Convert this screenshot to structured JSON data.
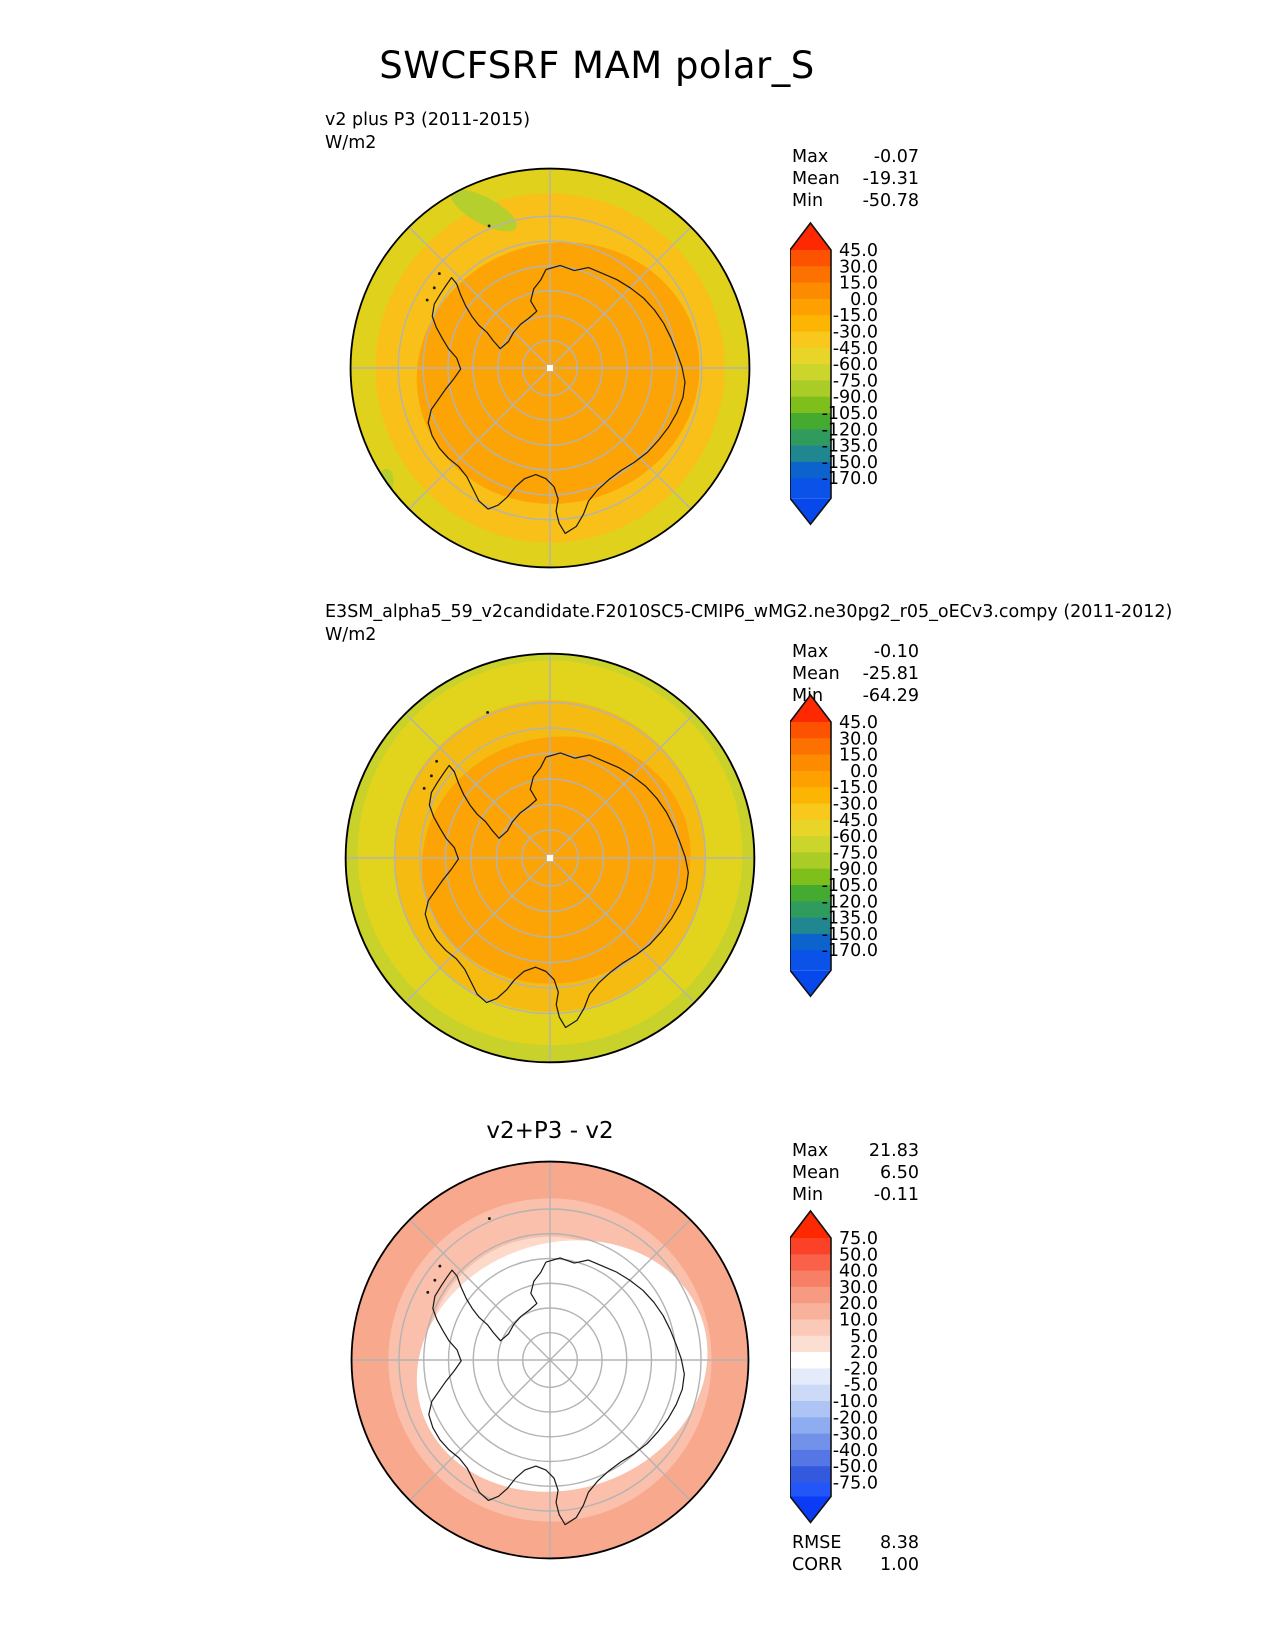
{
  "title": "SWCFSRF MAM polar_S",
  "panels": [
    {
      "label": "v2 plus P3 (2011-2015)",
      "units": "W/m2",
      "stats": [
        {
          "name": "Max",
          "value": "-0.07"
        },
        {
          "name": "Mean",
          "value": "-19.31"
        },
        {
          "name": "Min",
          "value": "-50.78"
        }
      ],
      "colorbar": {
        "ticks": [
          "45.0",
          "30.0",
          "15.0",
          "0.0",
          "-15.0",
          "-30.0",
          "-45.0",
          "-60.0",
          "-75.0",
          "-90.0",
          "-105.0",
          "-120.0",
          "-135.0",
          "-150.0",
          "-170.0"
        ],
        "band_colors": [
          "#fd5200",
          "#fd7100",
          "#fd8b00",
          "#fda000",
          "#fdb504",
          "#f9c81c",
          "#e9d428",
          "#ccd52b",
          "#a9cc26",
          "#7fbf1c",
          "#45aa30",
          "#2f9c5e",
          "#20868f",
          "#0c63cd"
        ],
        "arrow_top": "#fe2900",
        "extra_color": "#0a52e8",
        "arrow_bottom": "#0748ec"
      },
      "map": {
        "zone_colors": [
          "#e0d11d",
          "#f8c018",
          "#fca306",
          "#b5cf2e",
          "#b5cf2e"
        ],
        "graticule_color": "#b3b3b3",
        "coast_color": "#1a1a1a",
        "pole_dot": "#ffffff"
      }
    },
    {
      "label": "E3SM_alpha5_59_v2candidate.F2010SC5-CMIP6_wMG2.ne30pg2_r05_oECv3.compy (2011-2012)",
      "units": "W/m2",
      "stats": [
        {
          "name": "Max",
          "value": "-0.10"
        },
        {
          "name": "Mean",
          "value": "-25.81"
        },
        {
          "name": "Min",
          "value": "-64.29"
        }
      ],
      "colorbar": {
        "ticks": [
          "45.0",
          "30.0",
          "15.0",
          "0.0",
          "-15.0",
          "-30.0",
          "-45.0",
          "-60.0",
          "-75.0",
          "-90.0",
          "-105.0",
          "-120.0",
          "-135.0",
          "-150.0",
          "-170.0"
        ],
        "band_colors": [
          "#fd5200",
          "#fd7100",
          "#fd8b00",
          "#fda000",
          "#fdb504",
          "#f9c81c",
          "#e9d428",
          "#ccd52b",
          "#a9cc26",
          "#7fbf1c",
          "#45aa30",
          "#2f9c5e",
          "#20868f",
          "#0c63cd"
        ],
        "arrow_top": "#fe2900",
        "extra_color": "#0a52e8",
        "arrow_bottom": "#0748ec"
      },
      "map": {
        "zone_colors": [
          "#c9d22b",
          "#e2d41d",
          "#f6bb10",
          "#fca306"
        ],
        "graticule_color": "#b3b3b3",
        "coast_color": "#1a1a1a",
        "pole_dot": "#ffffff"
      }
    },
    {
      "label": "v2+P3 - v2",
      "stats": [
        {
          "name": "Max",
          "value": "21.83"
        },
        {
          "name": "Mean",
          "value": "6.50"
        },
        {
          "name": "Min",
          "value": "-0.11"
        }
      ],
      "colorbar": {
        "ticks": [
          "75.0",
          "50.0",
          "40.0",
          "30.0",
          "20.0",
          "10.0",
          "5.0",
          "2.0",
          "-2.0",
          "-5.0",
          "-10.0",
          "-20.0",
          "-30.0",
          "-40.0",
          "-50.0",
          "-75.0"
        ],
        "band_colors": [
          "#fb4229",
          "#f96248",
          "#f77f65",
          "#f69a82",
          "#f8b29c",
          "#fac9b8",
          "#fcded2",
          "#ffffff",
          "#e4ecfb",
          "#ccdaf8",
          "#adc4f4",
          "#8eacf0",
          "#7292ea",
          "#5577e6",
          "#3359de"
        ],
        "arrow_top": "#fe2900",
        "extra_color": "#2256f8",
        "arrow_bottom": "#0b3bf4"
      },
      "metrics": [
        {
          "name": "RMSE",
          "value": "8.38"
        },
        {
          "name": "CORR",
          "value": "1.00"
        }
      ],
      "map": {
        "zone_colors": [
          "#f8a88c",
          "#fac0ab",
          "#fcd9c9",
          "#fdece4",
          "#ffffff"
        ],
        "graticule_color": "#b3b3b3",
        "coast_color": "#1a1a1a"
      }
    }
  ],
  "chart_data": [
    {
      "type": "heatmap",
      "title": "v2 plus P3 (2011-2015)",
      "variable": "SWCFSRF",
      "season": "MAM",
      "region": "polar_S",
      "units": "W/m2",
      "projection": "south polar stereographic",
      "stats": {
        "max": -0.07,
        "mean": -19.31,
        "min": -50.78
      },
      "colorbar_ticks": [
        45.0,
        30.0,
        15.0,
        0.0,
        -15.0,
        -30.0,
        -45.0,
        -60.0,
        -75.0,
        -90.0,
        -105.0,
        -120.0,
        -135.0,
        -150.0,
        -170.0
      ],
      "colormap": "orange-yellow-green-blue rainbow, arrows both ends",
      "field_summary": "values near -15 to -30 W/m2 over Antarctic interior (orange), decreasing to -30 to -60 (yellow/yellow-green) toward 50-60S map edge"
    },
    {
      "type": "heatmap",
      "title": "E3SM_alpha5_59_v2candidate.F2010SC5-CMIP6_wMG2.ne30pg2_r05_oECv3.compy (2011-2012)",
      "variable": "SWCFSRF",
      "season": "MAM",
      "region": "polar_S",
      "units": "W/m2",
      "projection": "south polar stereographic",
      "stats": {
        "max": -0.1,
        "mean": -25.81,
        "min": -64.29
      },
      "colorbar_ticks": [
        45.0,
        30.0,
        15.0,
        0.0,
        -15.0,
        -30.0,
        -45.0,
        -60.0,
        -75.0,
        -90.0,
        -105.0,
        -120.0,
        -135.0,
        -150.0,
        -170.0
      ],
      "colormap": "orange-yellow-green-blue rainbow, arrows both ends",
      "field_summary": "similar to panel 1 but more negative; yellow-green (-45 to -60) ring at map edge"
    },
    {
      "type": "heatmap",
      "title": "v2+P3 - v2",
      "variable": "SWCFSRF difference",
      "season": "MAM",
      "region": "polar_S",
      "units": "W/m2",
      "projection": "south polar stereographic",
      "stats": {
        "max": 21.83,
        "mean": 6.5,
        "min": -0.11,
        "rmse": 8.38,
        "corr": 1.0
      },
      "colorbar_ticks": [
        75.0,
        50.0,
        40.0,
        30.0,
        20.0,
        10.0,
        5.0,
        2.0,
        -2.0,
        -5.0,
        -10.0,
        -20.0,
        -30.0,
        -40.0,
        -50.0,
        -75.0
      ],
      "colormap": "red-white-blue diverging, arrows both ends",
      "field_summary": "near 0 (white) over Antarctic continent, +5 to +20 (light red/salmon) over surrounding ocean toward map edge"
    }
  ]
}
